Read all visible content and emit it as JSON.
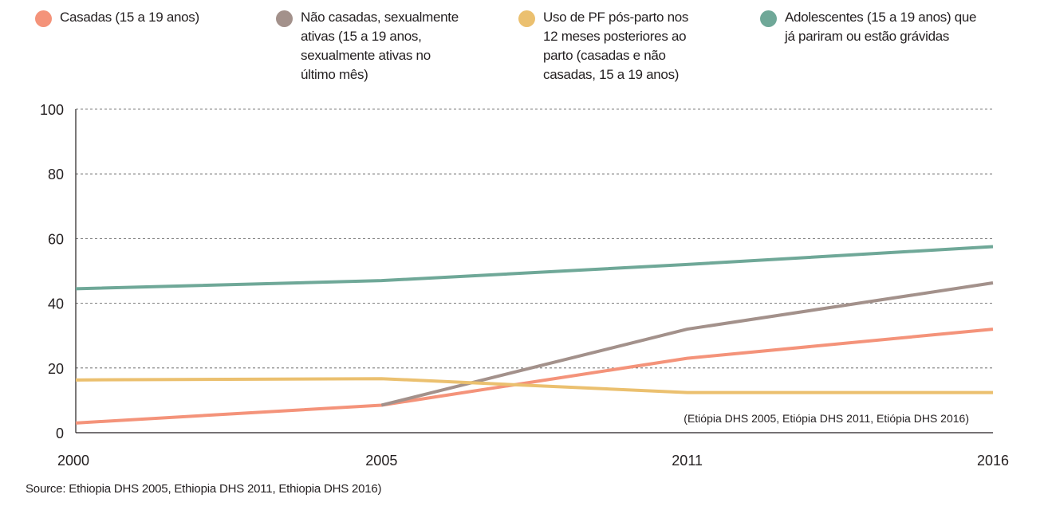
{
  "legend": [
    {
      "label": "Casadas (15 a 19 anos)",
      "color": "#F4937A"
    },
    {
      "label": "Não casadas, sexualmente\nativas (15 a 19 anos,\nsexualmente ativas no\núltimo mês)",
      "color": "#A3918B"
    },
    {
      "label": "Uso de PF pós-parto nos\n12 meses posteriores ao\nparto (casadas e não\ncasadas, 15 a 19 anos)",
      "color": "#EBC06F"
    },
    {
      "label": "Adolescentes (15 a 19 anos) que\njá pariram ou estão grávidas",
      "color": "#6FA898"
    }
  ],
  "chart_data": {
    "type": "line",
    "x": [
      "2000",
      "2005",
      "2011",
      "2016"
    ],
    "ylim": [
      0,
      100
    ],
    "yticks": [
      0,
      20,
      40,
      60,
      80,
      100
    ],
    "grid": "horizontal dashed",
    "legend_placement": "top",
    "series": [
      {
        "name": "Casadas (15 a 19 anos)",
        "color": "#F4937A",
        "values": [
          3,
          8.5,
          23,
          32
        ]
      },
      {
        "name": "Não casadas, sexualmente ativas (15 a 19 anos, sexualmente ativas no último mês)",
        "color": "#A3918B",
        "values": [
          null,
          8.5,
          32,
          46.3
        ]
      },
      {
        "name": "Uso de PF pós-parto nos 12 meses posteriores ao parto (casadas e não casadas, 15 a 19 anos)",
        "color": "#EBC06F",
        "values": [
          16.3,
          16.7,
          12.4,
          12.4
        ]
      },
      {
        "name": "Adolescentes (15 a 19 anos) que já pariram ou estão grávidas",
        "color": "#6FA898",
        "values": [
          44.5,
          47,
          52,
          57.5
        ]
      }
    ],
    "annotation": "(Etiópia DHS 2005, Etiópia DHS 2011, Etiópia DHS 2016)"
  },
  "source": "Source: Ethiopia DHS 2005, Ethiopia DHS 2011, Ethiopia DHS 2016)"
}
